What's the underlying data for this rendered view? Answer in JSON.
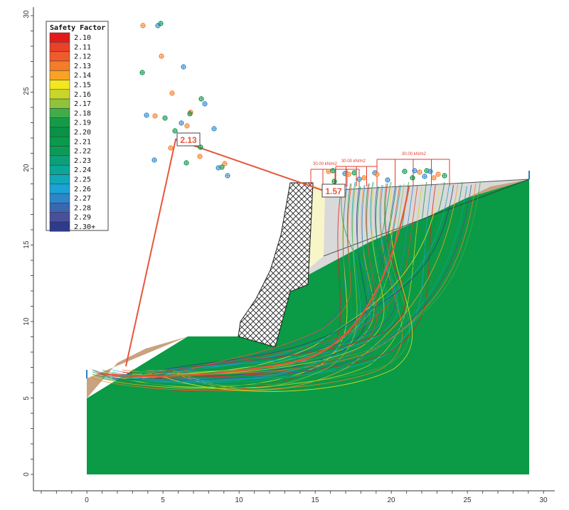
{
  "colors": {
    "ground": "#0b9a45",
    "soil_layer": "#c8a37f",
    "fill_layer": "#d9d9d9",
    "drain_layer": "#f8f6c9",
    "wall": "#ffffff",
    "critical": "#e8553c",
    "load": "#e23b2e",
    "axis": "#333333"
  },
  "legend": {
    "title": "Safety Factor",
    "items": [
      {
        "label": "2.10",
        "color": "#e31a1c"
      },
      {
        "label": "2.11",
        "color": "#e8422a"
      },
      {
        "label": "2.12",
        "color": "#ef5b2b"
      },
      {
        "label": "2.13",
        "color": "#f47d2a"
      },
      {
        "label": "2.14",
        "color": "#f8a324"
      },
      {
        "label": "2.15",
        "color": "#f4e61d"
      },
      {
        "label": "2.16",
        "color": "#c7d62b"
      },
      {
        "label": "2.17",
        "color": "#8fc33c"
      },
      {
        "label": "2.18",
        "color": "#3fae49"
      },
      {
        "label": "2.19",
        "color": "#149b48"
      },
      {
        "label": "2.20",
        "color": "#0a9148"
      },
      {
        "label": "2.21",
        "color": "#0a9a4c"
      },
      {
        "label": "2.22",
        "color": "#0b9b56"
      },
      {
        "label": "2.23",
        "color": "#0ca07a"
      },
      {
        "label": "2.24",
        "color": "#0aa698"
      },
      {
        "label": "2.25",
        "color": "#12a8b8"
      },
      {
        "label": "2.26",
        "color": "#1aa3d6"
      },
      {
        "label": "2.27",
        "color": "#2c86c9"
      },
      {
        "label": "2.28",
        "color": "#3a67b0"
      },
      {
        "label": "2.29",
        "color": "#4a4f9c"
      },
      {
        "label": "2.30+",
        "color": "#2e3a8a"
      }
    ]
  },
  "axes": {
    "x_ticks": [
      "0",
      "5",
      "10",
      "15",
      "20",
      "25",
      "30"
    ],
    "y_ticks": [
      "0",
      "5",
      "10",
      "15",
      "20",
      "25",
      "30"
    ]
  },
  "labels": {
    "fs_global": "2.13",
    "fs_wall": "1.57",
    "load_1": "30.00 kN/m2",
    "load_2": "30.00 kN/m2",
    "load_3": "30.00 kN/m2"
  }
}
